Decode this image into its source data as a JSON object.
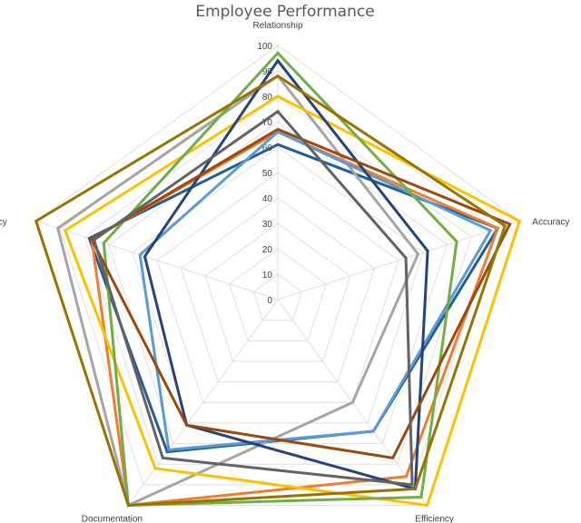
{
  "chart_data": {
    "type": "radar",
    "title": "Employee Performance",
    "axes": [
      "Relationship",
      "Accuracy",
      "Efficiency",
      "Documentation",
      "Policy"
    ],
    "rlim": [
      0,
      100
    ],
    "ticks": [
      0,
      10,
      20,
      30,
      40,
      50,
      60,
      70,
      80,
      90,
      100
    ],
    "grid": true,
    "legend": false,
    "series": [
      {
        "color": "#255e91",
        "values": [
          61,
          91,
          64,
          74,
          78
        ]
      },
      {
        "color": "#ed7d31",
        "values": [
          66,
          91,
          86,
          100,
          77
        ]
      },
      {
        "color": "#a5a5a5",
        "values": [
          88,
          58,
          50,
          100,
          91
        ]
      },
      {
        "color": "#ffc000",
        "values": [
          80,
          100,
          100,
          82,
          88
        ]
      },
      {
        "color": "#5b9bd5",
        "values": [
          66,
          88,
          64,
          73,
          57
        ]
      },
      {
        "color": "#70ad47",
        "values": [
          97,
          74,
          96,
          100,
          72
        ]
      },
      {
        "color": "#264478",
        "values": [
          94,
          62,
          92,
          61,
          55
        ]
      },
      {
        "color": "#9e480e",
        "values": [
          67,
          96,
          77,
          61,
          77
        ]
      },
      {
        "color": "#636363",
        "values": [
          74,
          53,
          90,
          77,
          76
        ]
      },
      {
        "color": "#997300",
        "values": [
          88,
          94,
          92,
          100,
          100
        ]
      }
    ]
  }
}
